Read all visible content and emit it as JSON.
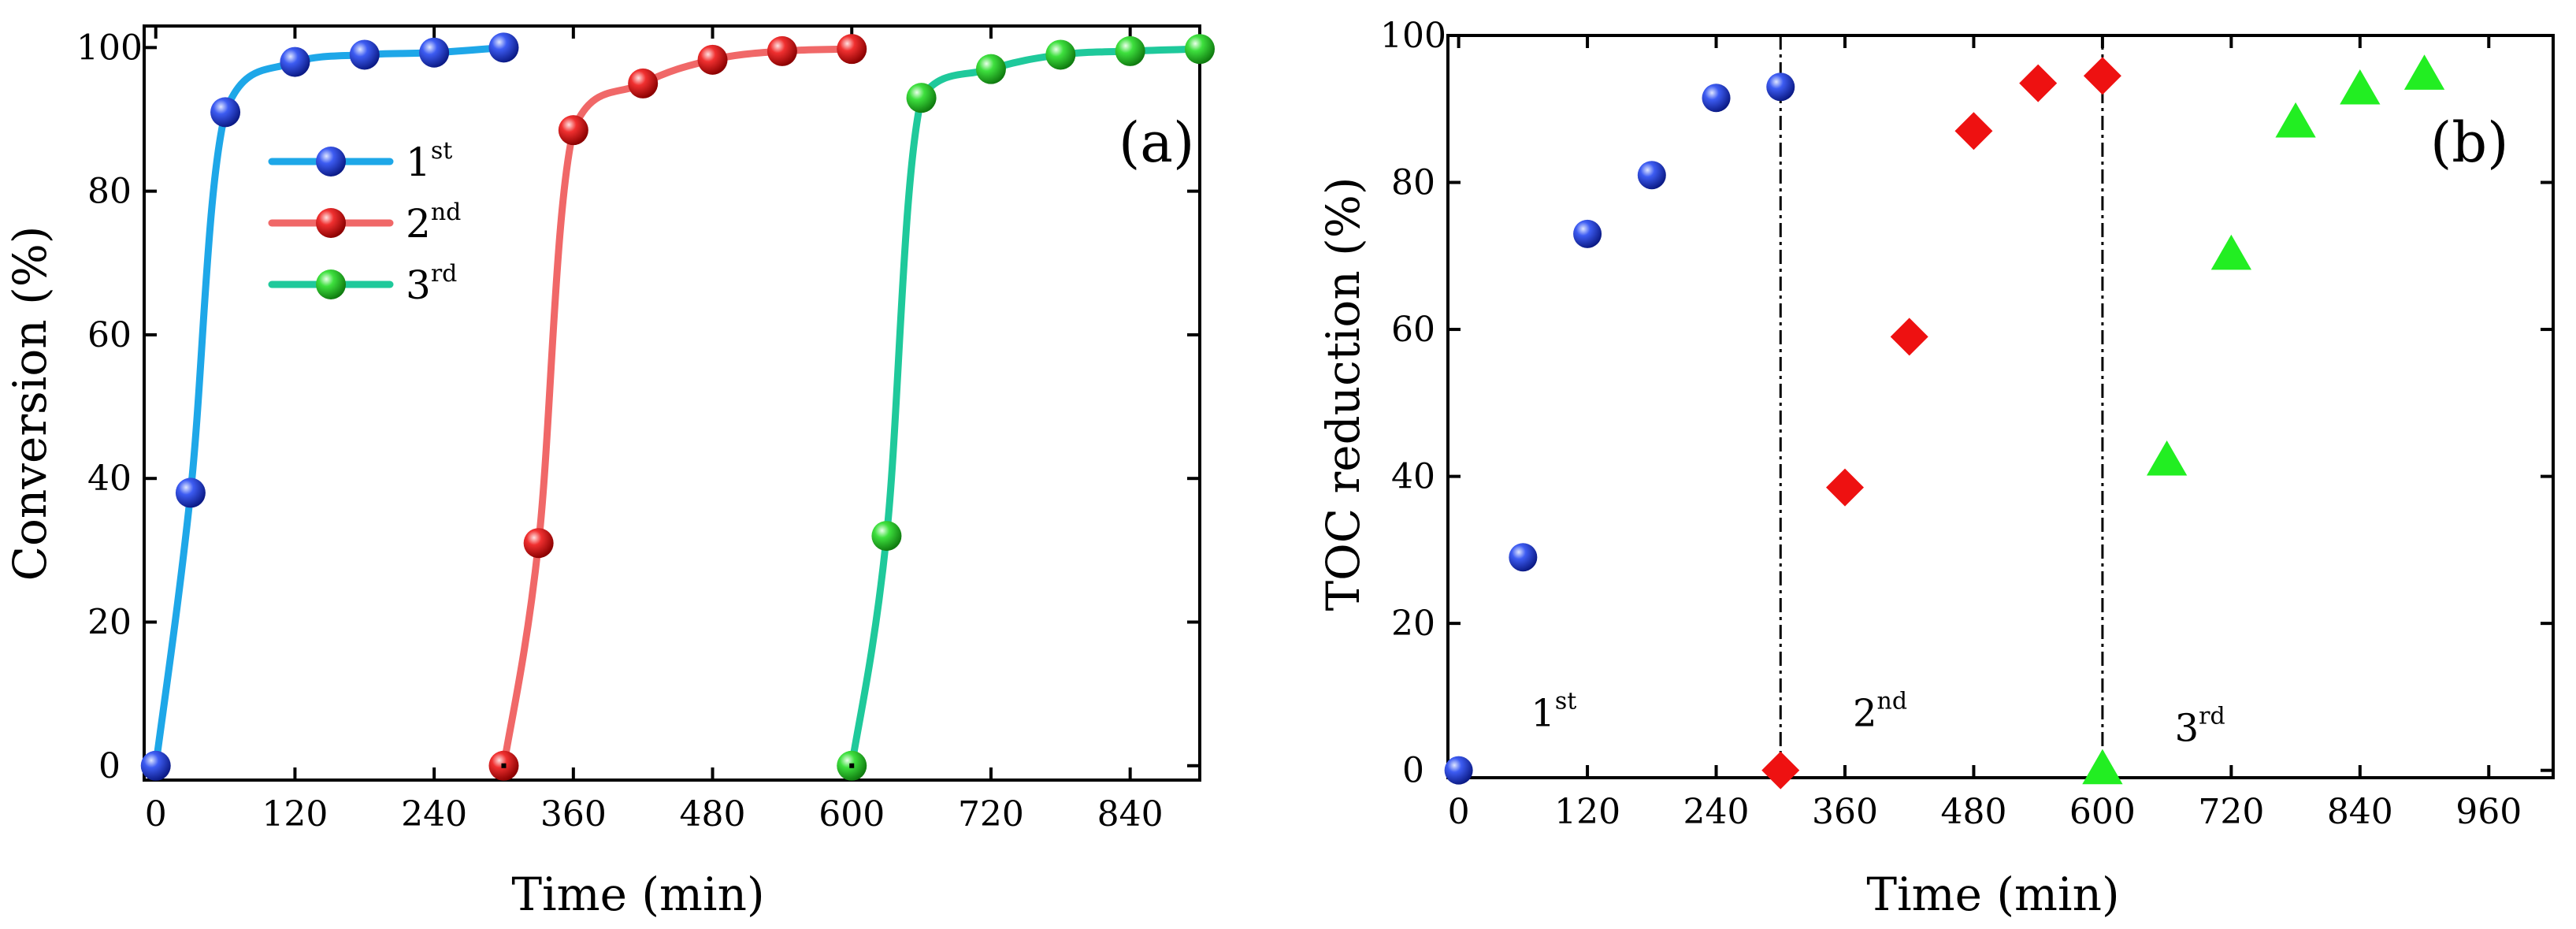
{
  "chart_data": [
    {
      "panel_label": "(a)",
      "type": "line",
      "xlabel": "Time (min)",
      "ylabel": "Conversion (%)",
      "xlim": [
        -10,
        900
      ],
      "ylim": [
        -2,
        103
      ],
      "xticks": [
        0,
        120,
        240,
        360,
        480,
        600,
        720,
        840
      ],
      "yticks": [
        0,
        20,
        40,
        60,
        80,
        100
      ],
      "legend": {
        "position": "upper-left-inside"
      },
      "series": [
        {
          "name": "1",
          "sup": "st",
          "color": "#1ea7e8",
          "marker_color": "#1e3fd6",
          "x": [
            0,
            30,
            60,
            120,
            180,
            240,
            300
          ],
          "y": [
            0,
            38,
            91,
            98,
            99,
            99.3,
            100
          ]
        },
        {
          "name": "2",
          "sup": "nd",
          "color": "#f06868",
          "marker_color": "#e81414",
          "x": [
            300,
            330,
            360,
            420,
            480,
            540,
            600
          ],
          "y": [
            0,
            31,
            88.5,
            95,
            98.3,
            99.5,
            99.8
          ]
        },
        {
          "name": "3",
          "sup": "rd",
          "color": "#1fc99b",
          "marker_color": "#2ed62e",
          "x": [
            600,
            630,
            660,
            720,
            780,
            840,
            900
          ],
          "y": [
            0,
            32,
            93,
            97,
            99,
            99.5,
            99.8
          ]
        }
      ]
    },
    {
      "panel_label": "(b)",
      "type": "scatter",
      "xlabel": "Time (min)",
      "ylabel": "TOC reduction (%)",
      "xlim": [
        -10,
        1020
      ],
      "ylim": [
        -1,
        100
      ],
      "xticks": [
        0,
        120,
        240,
        360,
        480,
        600,
        720,
        840,
        960
      ],
      "yticks": [
        0,
        20,
        40,
        60,
        80,
        100
      ],
      "vlines": [
        300,
        600
      ],
      "annotations": [
        {
          "base": "1",
          "sup": "st",
          "x": 60,
          "y": 6
        },
        {
          "base": "2",
          "sup": "nd",
          "x": 360,
          "y": 6
        },
        {
          "base": "3",
          "sup": "rd",
          "x": 660,
          "y": 4
        }
      ],
      "series": [
        {
          "name": "1st",
          "marker": "sphere",
          "color": "#1e3fd6",
          "x": [
            0,
            60,
            120,
            180,
            240,
            300
          ],
          "y": [
            0,
            29,
            73,
            81,
            91.5,
            93
          ]
        },
        {
          "name": "2nd",
          "marker": "diamond",
          "color": "#ee1111",
          "x": [
            300,
            360,
            420,
            480,
            540,
            600
          ],
          "y": [
            0,
            38.5,
            59,
            87,
            93.5,
            94.5
          ]
        },
        {
          "name": "3rd",
          "marker": "triangle",
          "color": "#22ee22",
          "x": [
            600,
            660,
            720,
            780,
            840,
            900
          ],
          "y": [
            0,
            42,
            70,
            88,
            92.5,
            94.5
          ]
        }
      ]
    }
  ]
}
